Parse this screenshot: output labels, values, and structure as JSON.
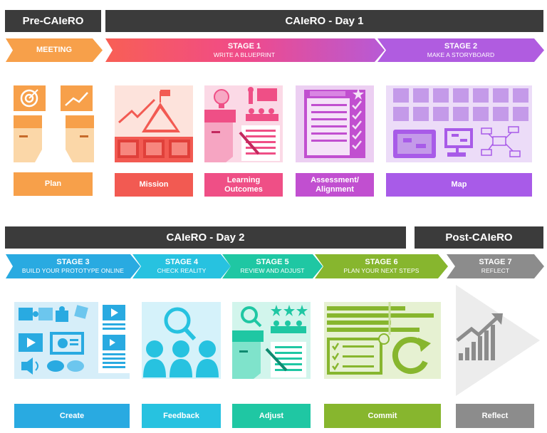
{
  "headers": {
    "pre": "Pre-CAIeRO",
    "day1": "CAIeRO - Day 1",
    "day2": "CAIeRO - Day 2",
    "post": "Post-CAIeRO"
  },
  "stages": {
    "meeting": {
      "title": "MEETING",
      "sub": ""
    },
    "s1": {
      "title": "STAGE 1",
      "sub": "WRITE A BLUEPRINT"
    },
    "s2": {
      "title": "STAGE 2",
      "sub": "MAKE A STORYBOARD"
    },
    "s3": {
      "title": "STAGE 3",
      "sub": "BUILD YOUR PROTOTYPE ONLINE"
    },
    "s4": {
      "title": "STAGE 4",
      "sub": "CHECK REALITY"
    },
    "s5": {
      "title": "STAGE 5",
      "sub": "REVIEW AND ADJUST"
    },
    "s6": {
      "title": "STAGE 6",
      "sub": "PLAN YOUR NEXT STEPS"
    },
    "s7": {
      "title": "STAGE 7",
      "sub": "REFLECT"
    }
  },
  "labels": {
    "plan": "Plan",
    "mission": "Mission",
    "learning_outcomes": "Learning Outcomes",
    "assessment": "Assessment/ Alignment",
    "map": "Map",
    "create": "Create",
    "feedback": "Feedback",
    "adjust": "Adjust",
    "commit": "Commit",
    "reflect": "Reflect"
  },
  "colors": {
    "header": "#3b3b3b",
    "meeting": "#f7a04a",
    "stage1": "#f2577a",
    "stage2": "#b05ce0",
    "mission": "#f25a52",
    "learning": "#ef4f86",
    "assessment": "#c14fd0",
    "map": "#a85be8",
    "stage3": "#29aae1",
    "stage4": "#27c2e0",
    "stage5": "#1fc7a3",
    "stage6": "#87b62e",
    "stage7": "#8c8c8c"
  },
  "icons": [
    "target-icon",
    "chart-up-icon",
    "mountain-flag-icon",
    "lightbulb-icon",
    "checklist-icon",
    "storyboard-icon",
    "puzzle-icon",
    "video-icon",
    "magnifier-icon",
    "people-icon",
    "stars-icon",
    "gantt-icon",
    "refresh-icon",
    "growth-chart-icon"
  ]
}
